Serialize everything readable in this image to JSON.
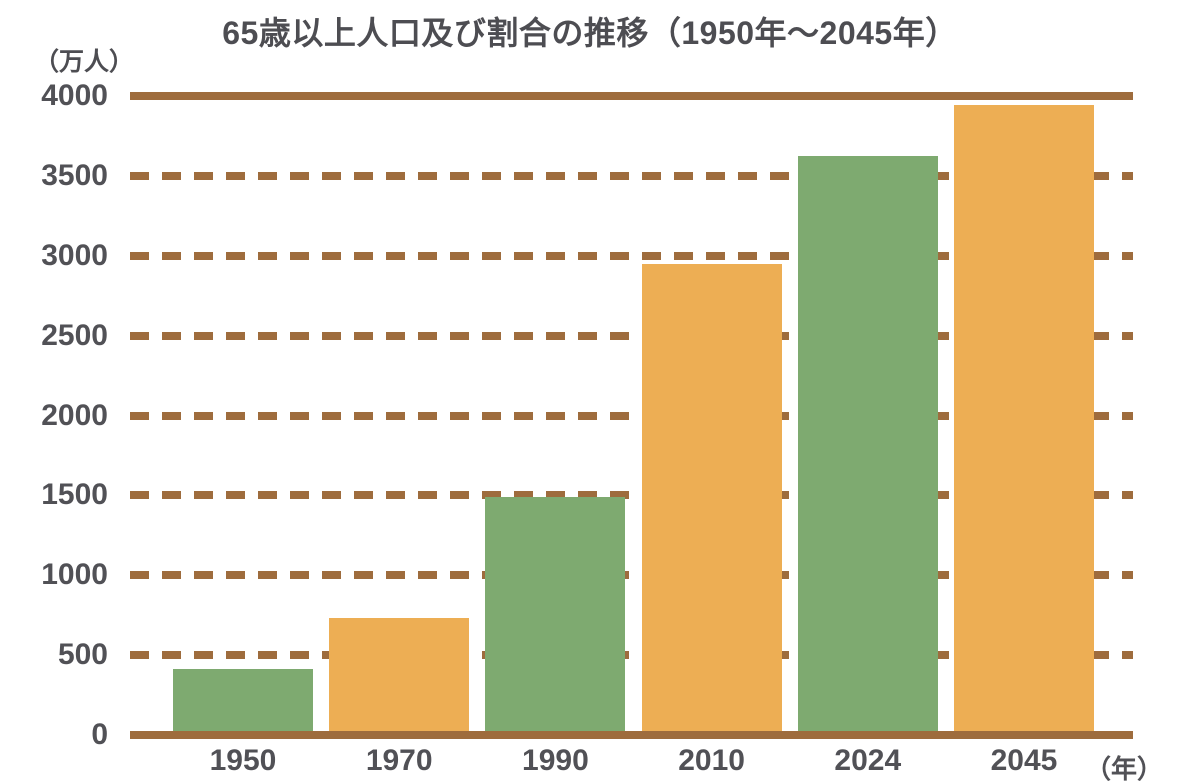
{
  "header": {
    "title": "65歳以上人口及び割合の推移（1950年～2045年）"
  },
  "chart_data": {
    "type": "bar",
    "title": "65歳以上人口及び割合の推移（1950年～2045年）",
    "categories": [
      "1950",
      "1970",
      "1990",
      "2010",
      "2024",
      "2045"
    ],
    "values": [
      411,
      733,
      1489,
      2948,
      3625,
      3945
    ],
    "bar_colors": [
      "#7EAA70",
      "#EDAE54",
      "#7EAA70",
      "#EDAE54",
      "#7EAA70",
      "#EDAE54"
    ],
    "xlabel": "（年）",
    "ylabel": "（万人）",
    "ylim": [
      0,
      4000
    ],
    "yticks": [
      0,
      500,
      1000,
      1500,
      2000,
      2500,
      3000,
      3500,
      4000
    ],
    "grid": "horizontal dashed brown lines at each 500 step; solid brown line at 4000 (top) and 0 (baseline); no vertical gridlines",
    "legend": "none",
    "colors": {
      "green_bar": "#7EAA70",
      "orange_bar": "#EDAE54",
      "grid_dash": "#9E6C3D",
      "axis_line": "#9E6C3D",
      "title_text": "#4D4D52",
      "tick_text": "#515156",
      "background": "#FFFFFF"
    }
  }
}
